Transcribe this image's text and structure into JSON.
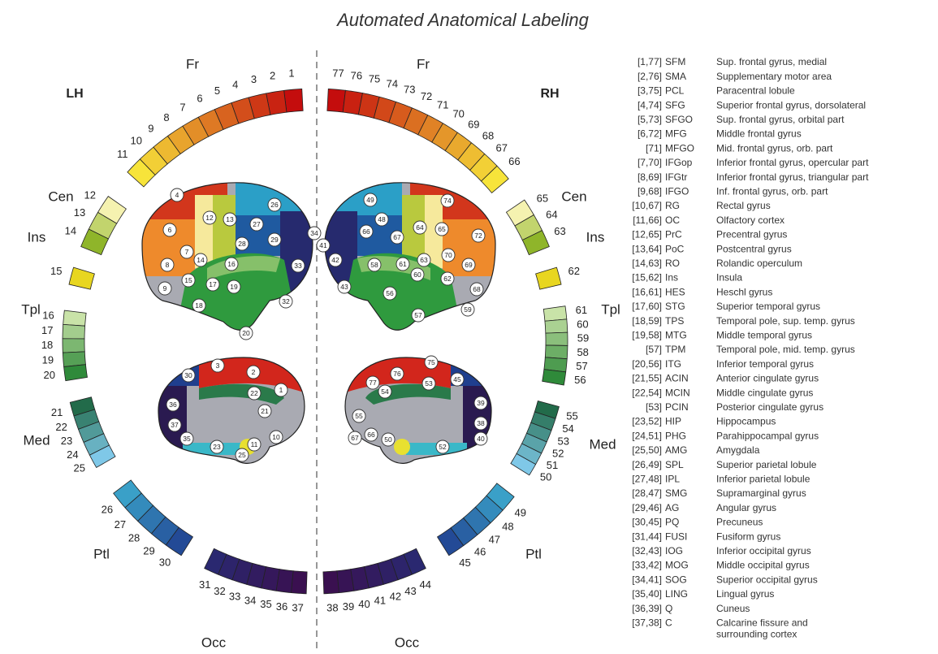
{
  "title": "Automated Anatomical Labeling",
  "hemispheres": [
    "LH",
    "RH"
  ],
  "groups": [
    {
      "name": "Fr",
      "left": [
        1,
        2,
        3,
        4,
        5,
        6,
        7,
        8,
        9,
        10,
        11
      ],
      "right": [
        77,
        76,
        75,
        74,
        73,
        72,
        71,
        70,
        69,
        68,
        67,
        66
      ]
    },
    {
      "name": "Cen",
      "left": [
        12,
        13,
        14
      ],
      "right": [
        65,
        64,
        63
      ]
    },
    {
      "name": "Ins",
      "left": [
        15
      ],
      "right": [
        62
      ]
    },
    {
      "name": "Tpl",
      "left": [
        16,
        17,
        18,
        19,
        20
      ],
      "right": [
        61,
        60,
        59,
        58,
        57,
        56
      ]
    },
    {
      "name": "Med",
      "left": [
        21,
        22,
        23,
        24,
        25
      ],
      "right": [
        55,
        54,
        53,
        52,
        51,
        50
      ]
    },
    {
      "name": "Ptl",
      "left": [
        26,
        27,
        28,
        29,
        30
      ],
      "right": [
        49,
        48,
        47,
        46,
        45
      ]
    },
    {
      "name": "Occ",
      "left": [
        31,
        32,
        33,
        34,
        35,
        36,
        37
      ],
      "right": [
        44,
        43,
        42,
        41,
        40,
        39,
        38
      ]
    }
  ],
  "brain_views": [
    {
      "labels": [
        4,
        6,
        12,
        13,
        26,
        27,
        7,
        28,
        29,
        34,
        8,
        14,
        16,
        33,
        15,
        17,
        19,
        9,
        18,
        20,
        32
      ]
    },
    {
      "labels": [
        30,
        3,
        2,
        1,
        22,
        21,
        36,
        37,
        35,
        23,
        11,
        10,
        25
      ]
    },
    {
      "labels": [
        49,
        74,
        48,
        65,
        66,
        67,
        64,
        72,
        42,
        58,
        61,
        63,
        70,
        69,
        60,
        62,
        43,
        56,
        68,
        59,
        57,
        41
      ]
    },
    {
      "labels": [
        76,
        75,
        53,
        45,
        77,
        54,
        39,
        38,
        40,
        55,
        67,
        66,
        50,
        52
      ]
    }
  ],
  "legend": {
    "rows": [
      {
        "code": "[1,77]",
        "abbr": "SFM",
        "name": "Sup. frontal gyrus, medial"
      },
      {
        "code": "[2,76]",
        "abbr": "SMA",
        "name": "Supplementary motor area"
      },
      {
        "code": "[3,75]",
        "abbr": "PCL",
        "name": "Paracentral lobule"
      },
      {
        "code": "[4,74]",
        "abbr": "SFG",
        "name": "Superior frontal gyrus, dorsolateral"
      },
      {
        "code": "[5,73]",
        "abbr": "SFGO",
        "name": "Sup. frontal gyrus, orbital part"
      },
      {
        "code": "[6,72]",
        "abbr": "MFG",
        "name": "Middle frontal gyrus"
      },
      {
        "code": "[71]",
        "abbr": "MFGO",
        "name": "Mid. frontal gyrus, orb. part"
      },
      {
        "code": "[7,70]",
        "abbr": "IFGop",
        "name": "Inferior frontal gyrus, opercular part"
      },
      {
        "code": "[8,69]",
        "abbr": "IFGtr",
        "name": "Inferior frontal gyrus, triangular part"
      },
      {
        "code": "[9,68]",
        "abbr": "IFGO",
        "name": "Inf. frontal gyrus, orb. part"
      },
      {
        "code": "[10,67]",
        "abbr": "RG",
        "name": "Rectal gyrus"
      },
      {
        "code": "[11,66]",
        "abbr": "OC",
        "name": "Olfactory cortex"
      },
      {
        "code": "[12,65]",
        "abbr": "PrC",
        "name": "Precentral gyrus"
      },
      {
        "code": "[13,64]",
        "abbr": "PoC",
        "name": "Postcentral gyrus"
      },
      {
        "code": "[14,63]",
        "abbr": "RO",
        "name": "Rolandic operculum"
      },
      {
        "code": "[15,62]",
        "abbr": "Ins",
        "name": "Insula"
      },
      {
        "code": "[16,61]",
        "abbr": "HES",
        "name": "Heschl gyrus"
      },
      {
        "code": "[17,60]",
        "abbr": "STG",
        "name": "Superior temporal gyrus"
      },
      {
        "code": "[18,59]",
        "abbr": "TPS",
        "name": "Temporal pole, sup. temp. gyrus"
      },
      {
        "code": "[19,58]",
        "abbr": "MTG",
        "name": "Middle temporal gyrus"
      },
      {
        "code": "[57]",
        "abbr": "TPM",
        "name": "Temporal pole, mid. temp. gyrus"
      },
      {
        "code": "[20,56]",
        "abbr": "ITG",
        "name": "Inferior temporal gyrus"
      },
      {
        "code": "[21,55]",
        "abbr": "ACIN",
        "name": "Anterior cingulate gyrus"
      },
      {
        "code": "[22,54]",
        "abbr": "MCIN",
        "name": "Middle cingulate gyrus"
      },
      {
        "code": "[53]",
        "abbr": "PCIN",
        "name": "Posterior cingulate gyrus"
      },
      {
        "code": "[23,52]",
        "abbr": "HIP",
        "name": "Hippocampus"
      },
      {
        "code": "[24,51]",
        "abbr": "PHG",
        "name": "Parahippocampal gyrus"
      },
      {
        "code": "[25,50]",
        "abbr": "AMG",
        "name": "Amygdala"
      },
      {
        "code": "[26,49]",
        "abbr": "SPL",
        "name": "Superior parietal lobule"
      },
      {
        "code": "[27,48]",
        "abbr": "IPL",
        "name": "Inferior parietal lobule"
      },
      {
        "code": "[28,47]",
        "abbr": "SMG",
        "name": "Supramarginal gyrus"
      },
      {
        "code": "[29,46]",
        "abbr": "AG",
        "name": "Angular gyrus"
      },
      {
        "code": "[30,45]",
        "abbr": "PQ",
        "name": "Precuneus"
      },
      {
        "code": "[31,44]",
        "abbr": "FUSI",
        "name": "Fusiform gyrus"
      },
      {
        "code": "[32,43]",
        "abbr": "IOG",
        "name": "Inferior occipital gyrus"
      },
      {
        "code": "[33,42]",
        "abbr": "MOG",
        "name": "Middle occipital gyrus"
      },
      {
        "code": "[34,41]",
        "abbr": "SOG",
        "name": "Superior occipital gyrus"
      },
      {
        "code": "[35,40]",
        "abbr": "LING",
        "name": "Lingual gyrus"
      },
      {
        "code": "[36,39]",
        "abbr": "Q",
        "name": "Cuneus"
      },
      {
        "code": "[37,38]",
        "abbr": "C",
        "name": [
          "Calcarine fissure and",
          "surrounding cortex"
        ]
      }
    ]
  }
}
